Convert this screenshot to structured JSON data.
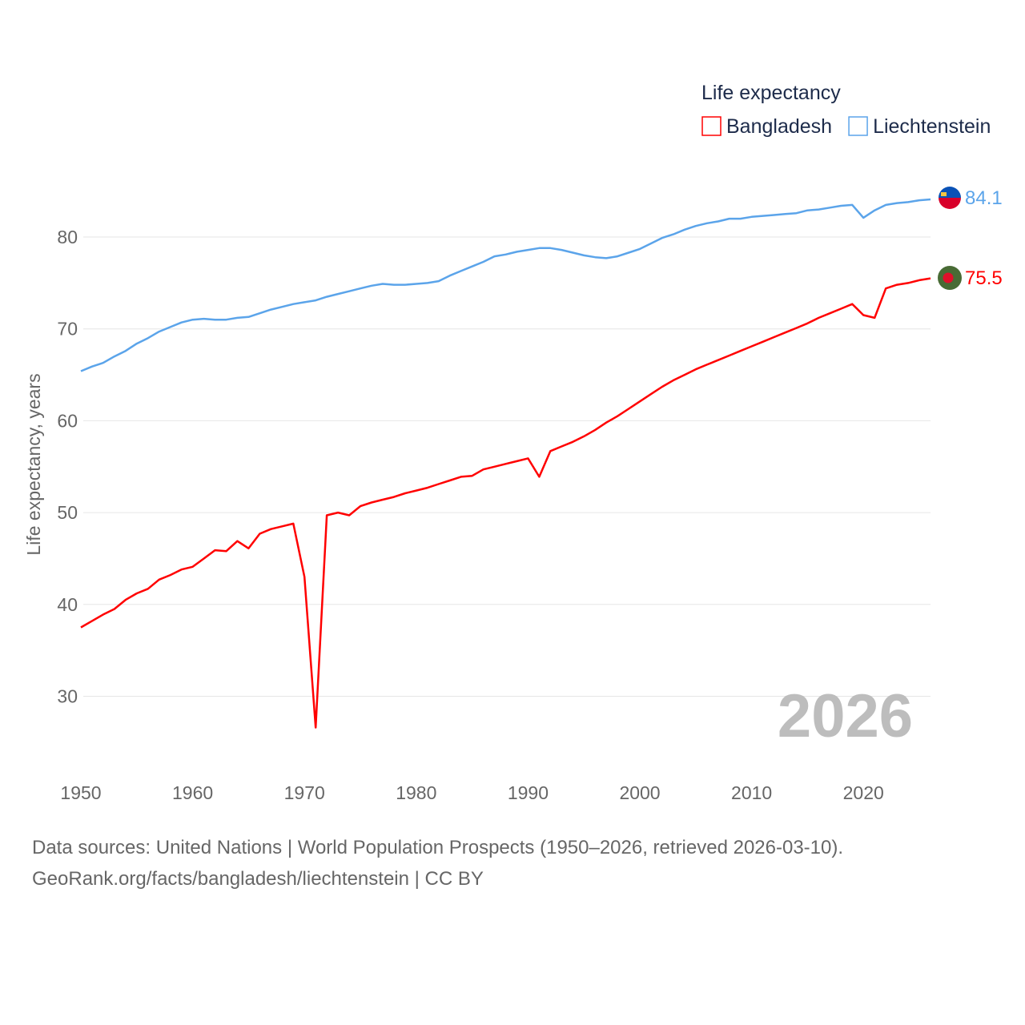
{
  "chart_data": {
    "type": "line",
    "title": "",
    "legend_title": "Life expectancy",
    "legend_position": "top-right",
    "ylabel": "Life expectancy, years",
    "xlabel": "",
    "xlim": [
      1950,
      2026
    ],
    "ylim": [
      22,
      88
    ],
    "yticks": [
      30,
      40,
      50,
      60,
      70,
      80
    ],
    "xticks": [
      1950,
      1960,
      1970,
      1980,
      1990,
      2000,
      2010,
      2020
    ],
    "grid": true,
    "year_label": "2026",
    "x": [
      1950,
      1951,
      1952,
      1953,
      1954,
      1955,
      1956,
      1957,
      1958,
      1959,
      1960,
      1961,
      1962,
      1963,
      1964,
      1965,
      1966,
      1967,
      1968,
      1969,
      1970,
      1971,
      1972,
      1973,
      1974,
      1975,
      1976,
      1977,
      1978,
      1979,
      1980,
      1981,
      1982,
      1983,
      1984,
      1985,
      1986,
      1987,
      1988,
      1989,
      1990,
      1991,
      1992,
      1993,
      1994,
      1995,
      1996,
      1997,
      1998,
      1999,
      2000,
      2001,
      2002,
      2003,
      2004,
      2005,
      2006,
      2007,
      2008,
      2009,
      2010,
      2011,
      2012,
      2013,
      2014,
      2015,
      2016,
      2017,
      2018,
      2019,
      2020,
      2021,
      2022,
      2023,
      2024,
      2025,
      2026
    ],
    "series": [
      {
        "name": "Bangladesh",
        "color": "#ff0000",
        "end_label": "75.5",
        "values": [
          37.5,
          38.2,
          38.9,
          39.5,
          40.5,
          41.2,
          41.7,
          42.7,
          43.2,
          43.8,
          44.1,
          45.0,
          45.9,
          45.8,
          46.9,
          46.1,
          47.7,
          48.2,
          48.5,
          48.8,
          43.0,
          26.6,
          49.7,
          50.0,
          49.7,
          50.7,
          51.1,
          51.4,
          51.7,
          52.1,
          52.4,
          52.7,
          53.1,
          53.5,
          53.9,
          54.0,
          54.7,
          55.0,
          55.3,
          55.6,
          55.9,
          53.9,
          56.7,
          57.2,
          57.7,
          58.3,
          59.0,
          59.8,
          60.5,
          61.3,
          62.1,
          62.9,
          63.7,
          64.4,
          65.0,
          65.6,
          66.1,
          66.6,
          67.1,
          67.6,
          68.1,
          68.6,
          69.1,
          69.6,
          70.1,
          70.6,
          71.2,
          71.7,
          72.2,
          72.7,
          71.5,
          71.2,
          74.4,
          74.8,
          75.0,
          75.3,
          75.5
        ]
      },
      {
        "name": "Liechtenstein",
        "color": "#5ba4ea",
        "end_label": "84.1",
        "values": [
          65.4,
          65.9,
          66.3,
          67.0,
          67.6,
          68.4,
          69.0,
          69.7,
          70.2,
          70.7,
          71.0,
          71.1,
          71.0,
          71.0,
          71.2,
          71.3,
          71.7,
          72.1,
          72.4,
          72.7,
          72.9,
          73.1,
          73.5,
          73.8,
          74.1,
          74.4,
          74.7,
          74.9,
          74.8,
          74.8,
          74.9,
          75.0,
          75.2,
          75.8,
          76.3,
          76.8,
          77.3,
          77.9,
          78.1,
          78.4,
          78.6,
          78.8,
          78.8,
          78.6,
          78.3,
          78.0,
          77.8,
          77.7,
          77.9,
          78.3,
          78.7,
          79.3,
          79.9,
          80.3,
          80.8,
          81.2,
          81.5,
          81.7,
          82.0,
          82.0,
          82.2,
          82.3,
          82.4,
          82.5,
          82.6,
          82.9,
          83.0,
          83.2,
          83.4,
          83.5,
          82.1,
          82.9,
          83.5,
          83.7,
          83.8,
          84.0,
          84.1
        ]
      }
    ]
  },
  "footer": {
    "sources": "Data sources: United Nations | World Population Prospects (1950–2026, retrieved 2026-03-10).",
    "credit": "GeoRank.org/facts/bangladesh/liechtenstein | CC BY"
  }
}
